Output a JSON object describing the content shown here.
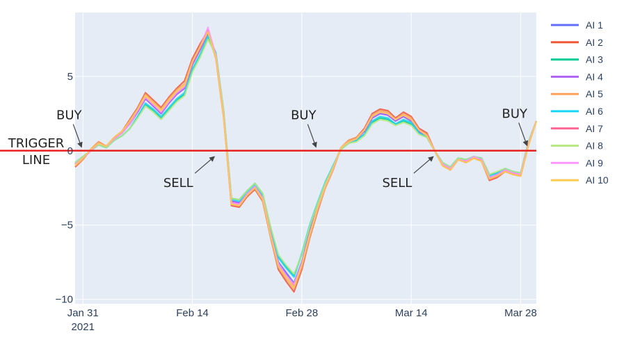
{
  "chart_data": {
    "type": "line",
    "x_axis": {
      "type": "date",
      "range": [
        "2021-01-30",
        "2021-03-30"
      ],
      "ticks": [
        {
          "date": "2021-01-31",
          "label": "Jan 31",
          "sublabel": "2021"
        },
        {
          "date": "2021-02-14",
          "label": "Feb 14"
        },
        {
          "date": "2021-02-28",
          "label": "Feb 28"
        },
        {
          "date": "2021-03-14",
          "label": "Mar 14"
        },
        {
          "date": "2021-03-28",
          "label": "Mar 28"
        }
      ]
    },
    "y_axis": {
      "range": [
        -10.3,
        9.3
      ],
      "ticks": [
        {
          "value": 5,
          "label": "5"
        },
        {
          "value": 0,
          "label": "0"
        },
        {
          "value": -5,
          "label": "−5"
        },
        {
          "value": -10,
          "label": "−10"
        }
      ]
    },
    "grid": true,
    "legend_placement": "right",
    "trigger_line": {
      "value": 0,
      "color": "#e8221e",
      "label_lines": [
        "TRIGGER",
        "LINE"
      ]
    },
    "annotations": [
      {
        "text": "BUY",
        "date": "2021-01-31",
        "value": 0.1
      },
      {
        "text": "SELL",
        "date": "2021-02-17",
        "value": -0.3
      },
      {
        "text": "BUY",
        "date": "2021-03-02",
        "value": 0.1
      },
      {
        "text": "SELL",
        "date": "2021-03-17",
        "value": -0.3
      },
      {
        "text": "BUY",
        "date": "2021-03-29",
        "value": 0.2
      }
    ],
    "x": [
      "2021-01-30",
      "2021-01-31",
      "2021-02-01",
      "2021-02-02",
      "2021-02-03",
      "2021-02-04",
      "2021-02-05",
      "2021-02-06",
      "2021-02-07",
      "2021-02-08",
      "2021-02-09",
      "2021-02-10",
      "2021-02-11",
      "2021-02-12",
      "2021-02-13",
      "2021-02-14",
      "2021-02-15",
      "2021-02-16",
      "2021-02-17",
      "2021-02-18",
      "2021-02-19",
      "2021-02-20",
      "2021-02-21",
      "2021-02-22",
      "2021-02-23",
      "2021-02-24",
      "2021-02-25",
      "2021-02-26",
      "2021-02-27",
      "2021-02-28",
      "2021-03-01",
      "2021-03-02",
      "2021-03-03",
      "2021-03-04",
      "2021-03-05",
      "2021-03-06",
      "2021-03-07",
      "2021-03-08",
      "2021-03-09",
      "2021-03-10",
      "2021-03-11",
      "2021-03-12",
      "2021-03-13",
      "2021-03-14",
      "2021-03-15",
      "2021-03-16",
      "2021-03-17",
      "2021-03-18",
      "2021-03-19",
      "2021-03-20",
      "2021-03-21",
      "2021-03-22",
      "2021-03-23",
      "2021-03-24",
      "2021-03-25",
      "2021-03-26",
      "2021-03-27",
      "2021-03-28",
      "2021-03-29",
      "2021-03-30"
    ],
    "series": [
      {
        "name": "AI 1",
        "color": "#636efa",
        "values": [
          -0.9,
          -0.5,
          0.0,
          0.5,
          0.3,
          0.8,
          1.2,
          1.8,
          2.6,
          3.5,
          3.0,
          2.5,
          3.2,
          3.8,
          4.2,
          5.8,
          6.8,
          7.9,
          6.5,
          2.5,
          -3.4,
          -3.5,
          -2.9,
          -2.4,
          -3.1,
          -5.5,
          -7.5,
          -8.2,
          -8.9,
          -7.5,
          -5.5,
          -3.8,
          -2.3,
          -1.2,
          0.2,
          0.6,
          0.8,
          1.3,
          2.2,
          2.5,
          2.4,
          2.0,
          2.3,
          2.0,
          1.3,
          1.0,
          0.0,
          -0.9,
          -1.2,
          -0.6,
          -0.7,
          -0.4,
          -0.6,
          -1.8,
          -1.6,
          -1.3,
          -1.5,
          -1.6,
          0.5,
          2.0
        ]
      },
      {
        "name": "AI 2",
        "color": "#ef553b",
        "values": [
          -1.1,
          -0.6,
          0.1,
          0.6,
          0.3,
          0.9,
          1.3,
          2.1,
          2.9,
          3.9,
          3.4,
          2.9,
          3.6,
          4.2,
          4.7,
          6.2,
          7.2,
          8.1,
          6.3,
          2.3,
          -3.7,
          -3.8,
          -3.1,
          -2.6,
          -3.4,
          -5.8,
          -8.0,
          -8.8,
          -9.5,
          -8.0,
          -5.9,
          -4.1,
          -2.5,
          -1.3,
          0.2,
          0.7,
          0.9,
          1.5,
          2.5,
          2.8,
          2.7,
          2.2,
          2.6,
          2.3,
          1.5,
          1.2,
          0.0,
          -1.0,
          -1.3,
          -0.6,
          -0.8,
          -0.5,
          -0.7,
          -2.0,
          -1.8,
          -1.4,
          -1.6,
          -1.7,
          0.4,
          2.0
        ]
      },
      {
        "name": "AI 3",
        "color": "#00cc96",
        "values": [
          -0.8,
          -0.4,
          0.0,
          0.4,
          0.2,
          0.7,
          1.0,
          1.5,
          2.3,
          3.1,
          2.7,
          2.2,
          2.8,
          3.4,
          3.8,
          5.4,
          6.4,
          7.6,
          6.4,
          2.6,
          -3.2,
          -3.3,
          -2.7,
          -2.2,
          -2.9,
          -5.2,
          -7.1,
          -7.8,
          -8.4,
          -7.0,
          -5.2,
          -3.6,
          -2.2,
          -1.1,
          0.1,
          0.5,
          0.7,
          1.1,
          1.9,
          2.2,
          2.1,
          1.8,
          2.0,
          1.8,
          1.2,
          0.9,
          0.0,
          -0.8,
          -1.1,
          -0.5,
          -0.6,
          -0.4,
          -0.5,
          -1.6,
          -1.5,
          -1.2,
          -1.4,
          -1.5,
          0.6,
          2.0
        ]
      },
      {
        "name": "AI 4",
        "color": "#ab63fa",
        "values": [
          -0.9,
          -0.5,
          0.0,
          0.5,
          0.3,
          0.8,
          1.2,
          1.8,
          2.6,
          3.5,
          3.0,
          2.5,
          3.2,
          3.8,
          4.2,
          5.8,
          6.8,
          8.0,
          6.5,
          2.5,
          -3.4,
          -3.5,
          -2.9,
          -2.4,
          -3.1,
          -5.5,
          -7.6,
          -8.3,
          -9.0,
          -7.6,
          -5.5,
          -3.8,
          -2.3,
          -1.2,
          0.2,
          0.6,
          0.8,
          1.3,
          2.2,
          2.5,
          2.4,
          2.0,
          2.3,
          2.0,
          1.3,
          1.0,
          0.0,
          -0.9,
          -1.2,
          -0.6,
          -0.7,
          -0.4,
          -0.6,
          -1.8,
          -1.6,
          -1.3,
          -1.5,
          -1.6,
          0.5,
          2.0
        ]
      },
      {
        "name": "AI 5",
        "color": "#ffa15a",
        "values": [
          -1.0,
          -0.6,
          0.1,
          0.6,
          0.3,
          0.9,
          1.3,
          2.0,
          2.8,
          3.8,
          3.3,
          2.8,
          3.5,
          4.1,
          4.5,
          6.0,
          7.0,
          8.0,
          6.2,
          2.2,
          -3.6,
          -3.7,
          -3.0,
          -2.5,
          -3.3,
          -5.7,
          -7.8,
          -8.6,
          -9.3,
          -7.8,
          -5.8,
          -4.0,
          -2.5,
          -1.3,
          0.2,
          0.7,
          0.9,
          1.4,
          2.4,
          2.7,
          2.6,
          2.1,
          2.5,
          2.2,
          1.4,
          1.1,
          0.0,
          -1.0,
          -1.3,
          -0.6,
          -0.8,
          -0.5,
          -0.7,
          -1.9,
          -1.7,
          -1.4,
          -1.6,
          -1.7,
          0.4,
          2.0
        ]
      },
      {
        "name": "AI 6",
        "color": "#19d3f3",
        "values": [
          -0.8,
          -0.4,
          0.0,
          0.4,
          0.2,
          0.7,
          1.0,
          1.5,
          2.3,
          3.2,
          2.8,
          2.3,
          2.9,
          3.5,
          3.9,
          5.5,
          6.5,
          7.7,
          6.6,
          2.7,
          -3.3,
          -3.4,
          -2.8,
          -2.3,
          -3.0,
          -5.3,
          -7.2,
          -7.9,
          -8.5,
          -6.9,
          -5.0,
          -3.5,
          -2.1,
          -1.0,
          0.1,
          0.5,
          0.7,
          1.1,
          2.0,
          2.3,
          2.2,
          1.8,
          2.1,
          1.9,
          1.2,
          0.9,
          0.0,
          -0.8,
          -1.1,
          -0.5,
          -0.6,
          -0.4,
          -0.5,
          -1.7,
          -1.5,
          -1.2,
          -1.4,
          -1.5,
          0.6,
          2.0
        ]
      },
      {
        "name": "AI 7",
        "color": "#ff6692",
        "values": [
          -0.9,
          -0.5,
          0.0,
          0.5,
          0.3,
          0.8,
          1.2,
          1.9,
          2.7,
          3.6,
          3.1,
          2.6,
          3.3,
          3.9,
          4.3,
          5.9,
          6.9,
          8.1,
          6.4,
          2.4,
          -3.5,
          -3.6,
          -3.0,
          -2.5,
          -3.2,
          -5.6,
          -7.7,
          -8.4,
          -9.1,
          -7.7,
          -5.6,
          -3.9,
          -2.4,
          -1.2,
          0.2,
          0.6,
          0.8,
          1.4,
          2.3,
          2.6,
          2.5,
          2.1,
          2.4,
          2.1,
          1.4,
          1.0,
          0.0,
          -0.9,
          -1.2,
          -0.6,
          -0.7,
          -0.4,
          -0.6,
          -1.9,
          -1.7,
          -1.3,
          -1.5,
          -1.6,
          0.5,
          2.0
        ]
      },
      {
        "name": "AI 8",
        "color": "#b6e880",
        "values": [
          -0.8,
          -0.4,
          0.0,
          0.4,
          0.2,
          0.7,
          1.0,
          1.5,
          2.2,
          3.0,
          2.6,
          2.1,
          2.7,
          3.3,
          3.7,
          5.3,
          6.3,
          7.5,
          6.5,
          2.7,
          -3.2,
          -3.3,
          -2.7,
          -2.2,
          -2.9,
          -5.1,
          -7.0,
          -7.7,
          -8.3,
          -7.0,
          -5.1,
          -3.6,
          -2.2,
          -1.1,
          0.1,
          0.5,
          0.6,
          1.0,
          1.8,
          2.1,
          2.0,
          1.7,
          1.9,
          1.7,
          1.1,
          0.9,
          0.0,
          -0.8,
          -1.1,
          -0.5,
          -0.6,
          -0.4,
          -0.5,
          -1.6,
          -1.4,
          -1.2,
          -1.4,
          -1.5,
          0.6,
          2.0
        ]
      },
      {
        "name": "AI 9",
        "color": "#ff97ff",
        "values": [
          -0.9,
          -0.5,
          0.0,
          0.5,
          0.3,
          0.8,
          1.2,
          1.8,
          2.7,
          3.6,
          3.1,
          2.6,
          3.3,
          3.9,
          4.3,
          6.0,
          7.0,
          8.3,
          6.4,
          2.4,
          -3.5,
          -3.6,
          -2.9,
          -2.4,
          -3.2,
          -5.6,
          -7.6,
          -8.4,
          -9.0,
          -7.6,
          -5.6,
          -3.9,
          -2.4,
          -1.2,
          0.2,
          0.6,
          0.8,
          1.4,
          2.3,
          2.6,
          2.5,
          2.1,
          2.4,
          2.1,
          1.4,
          1.0,
          0.0,
          -0.9,
          -1.2,
          -0.6,
          -0.7,
          -0.4,
          -0.6,
          -1.8,
          -1.6,
          -1.3,
          -1.5,
          -1.6,
          0.5,
          2.0
        ]
      },
      {
        "name": "AI 10",
        "color": "#fecb52",
        "values": [
          -1.0,
          -0.5,
          0.1,
          0.5,
          0.3,
          0.9,
          1.3,
          2.0,
          2.8,
          3.7,
          3.2,
          2.7,
          3.4,
          4.0,
          4.4,
          6.0,
          7.0,
          8.0,
          6.3,
          2.3,
          -3.6,
          -3.7,
          -3.0,
          -2.5,
          -3.3,
          -5.7,
          -7.8,
          -8.5,
          -9.2,
          -7.7,
          -5.7,
          -3.9,
          -2.4,
          -1.2,
          0.2,
          0.6,
          0.8,
          1.4,
          2.3,
          2.6,
          2.5,
          2.1,
          2.4,
          2.1,
          1.4,
          1.0,
          0.0,
          -1.0,
          -1.3,
          -0.6,
          -0.8,
          -0.5,
          -0.7,
          -1.9,
          -1.7,
          -1.4,
          -1.6,
          -1.7,
          0.4,
          2.0
        ]
      }
    ]
  }
}
